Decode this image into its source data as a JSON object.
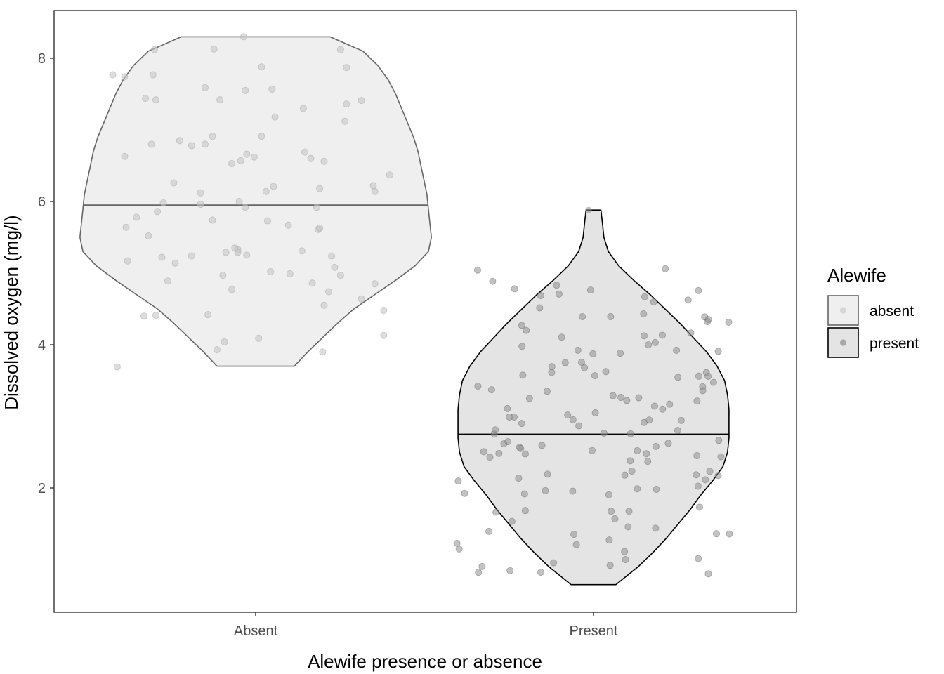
{
  "chart_data": {
    "type": "violin",
    "xlabel": "Alewife presence or absence",
    "ylabel": "Dissolved oxygen (mg/l)",
    "categories": [
      "Absent",
      "Present"
    ],
    "y_ticks": [
      2,
      4,
      6,
      8
    ],
    "ylim": [
      0.5,
      8.7
    ],
    "grid": false,
    "legend": {
      "title": "Alewife",
      "position": "right",
      "entries": [
        {
          "label": "absent",
          "fill": "#efefef",
          "stroke": "#666666",
          "point": "#cfcfcf"
        },
        {
          "label": "present",
          "fill": "#e4e4e4",
          "stroke": "#000000",
          "point": "#999999"
        }
      ]
    },
    "series": [
      {
        "name": "absent",
        "category": "Absent",
        "median": 5.95,
        "min": 3.7,
        "max": 8.3,
        "fill": "#efefef",
        "stroke": "#666666",
        "point_color": "#c7c7c7",
        "density": [
          [
            8.3,
            0.5
          ],
          [
            8.1,
            0.72
          ],
          [
            7.9,
            0.82
          ],
          [
            7.7,
            0.89
          ],
          [
            7.5,
            0.94
          ],
          [
            7.3,
            0.98
          ],
          [
            7.1,
            1.02
          ],
          [
            6.9,
            1.06
          ],
          [
            6.7,
            1.09
          ],
          [
            6.5,
            1.11
          ],
          [
            6.3,
            1.13
          ],
          [
            6.1,
            1.15
          ],
          [
            5.9,
            1.16
          ],
          [
            5.7,
            1.17
          ],
          [
            5.5,
            1.18
          ],
          [
            5.3,
            1.16
          ],
          [
            5.1,
            1.07
          ],
          [
            4.9,
            0.94
          ],
          [
            4.7,
            0.8
          ],
          [
            4.5,
            0.66
          ],
          [
            4.3,
            0.55
          ],
          [
            4.1,
            0.45
          ],
          [
            3.9,
            0.35
          ],
          [
            3.7,
            0.26
          ]
        ],
        "points": [
          [
            -0.68,
            8.12
          ],
          [
            -0.69,
            7.77
          ],
          [
            -0.67,
            7.42
          ],
          [
            -0.74,
            7.44
          ],
          [
            -0.88,
            6.63
          ],
          [
            -0.7,
            6.8
          ],
          [
            -0.55,
            6.26
          ],
          [
            -0.51,
            6.85
          ],
          [
            -0.43,
            6.78
          ],
          [
            -0.37,
            6.12
          ],
          [
            -0.8,
            5.78
          ],
          [
            -0.62,
            5.98
          ],
          [
            -0.72,
            5.52
          ],
          [
            -0.54,
            5.14
          ],
          [
            -0.87,
            5.64
          ],
          [
            -0.66,
            5.86
          ],
          [
            -0.86,
            5.17
          ],
          [
            -0.63,
            5.22
          ],
          [
            -0.43,
            5.24
          ],
          [
            -0.37,
            5.96
          ],
          [
            -0.29,
            5.74
          ],
          [
            -0.07,
            5.92
          ],
          [
            -0.2,
            5.29
          ],
          [
            -0.12,
            5.33
          ],
          [
            -0.22,
            4.97
          ],
          [
            -0.06,
            5.25
          ],
          [
            0.1,
            5.02
          ],
          [
            0.23,
            4.99
          ],
          [
            0.38,
            4.86
          ],
          [
            0.57,
            4.97
          ],
          [
            0.53,
            5.08
          ],
          [
            0.49,
            4.74
          ],
          [
            0.46,
            4.55
          ],
          [
            0.71,
            4.64
          ],
          [
            0.8,
            4.85
          ],
          [
            0.86,
            4.13
          ],
          [
            0.86,
            4.48
          ],
          [
            -0.59,
            4.89
          ],
          [
            -0.67,
            4.41
          ],
          [
            -0.75,
            4.4
          ],
          [
            -0.32,
            4.42
          ],
          [
            -0.16,
            4.77
          ],
          [
            -0.26,
            3.93
          ],
          [
            -0.21,
            4.04
          ],
          [
            0.02,
            4.09
          ],
          [
            0.45,
            3.9
          ],
          [
            -0.93,
            3.69
          ],
          [
            0.46,
            6.56
          ],
          [
            0.43,
            6.18
          ],
          [
            0.42,
            5.61
          ],
          [
            0.51,
            5.24
          ],
          [
            0.43,
            5.63
          ],
          [
            0.37,
            6.6
          ],
          [
            0.33,
            6.69
          ],
          [
            0.32,
            7.3
          ],
          [
            0.61,
            7.36
          ],
          [
            0.71,
            7.41
          ],
          [
            0.6,
            7.12
          ],
          [
            0.57,
            8.12
          ],
          [
            0.61,
            7.87
          ],
          [
            0.79,
            6.22
          ],
          [
            0.8,
            6.14
          ],
          [
            0.9,
            6.37
          ],
          [
            -0.34,
            6.8
          ],
          [
            -0.29,
            6.91
          ],
          [
            -0.34,
            7.59
          ],
          [
            -0.24,
            7.42
          ],
          [
            -0.07,
            7.55
          ],
          [
            0.04,
            7.88
          ],
          [
            0.11,
            7.57
          ],
          [
            0.13,
            7.18
          ],
          [
            0.12,
            6.21
          ],
          [
            0.07,
            6.14
          ],
          [
            -0.01,
            6.62
          ],
          [
            -0.16,
            6.53
          ],
          [
            -0.1,
            6.57
          ],
          [
            -0.06,
            6.66
          ],
          [
            0.04,
            6.91
          ],
          [
            -0.12,
            5.29
          ],
          [
            -0.11,
            6.0
          ],
          [
            -0.14,
            5.35
          ],
          [
            0.08,
            5.73
          ],
          [
            -0.08,
            8.3
          ],
          [
            -0.28,
            8.13
          ],
          [
            -0.96,
            7.77
          ],
          [
            -0.88,
            7.74
          ],
          [
            0.41,
            5.92
          ],
          [
            0.22,
            5.67
          ],
          [
            0.31,
            5.31
          ]
        ]
      },
      {
        "name": "present",
        "category": "Present",
        "median": 2.75,
        "min": 0.65,
        "max": 5.88,
        "fill": "#e4e4e4",
        "stroke": "#000000",
        "point_color": "#8f8f8f",
        "density": [
          [
            5.88,
            0.05
          ],
          [
            5.7,
            0.06
          ],
          [
            5.5,
            0.07
          ],
          [
            5.3,
            0.1
          ],
          [
            5.1,
            0.17
          ],
          [
            4.9,
            0.27
          ],
          [
            4.7,
            0.38
          ],
          [
            4.5,
            0.48
          ],
          [
            4.3,
            0.58
          ],
          [
            4.1,
            0.67
          ],
          [
            3.9,
            0.76
          ],
          [
            3.7,
            0.83
          ],
          [
            3.5,
            0.88
          ],
          [
            3.3,
            0.9
          ],
          [
            3.1,
            0.91
          ],
          [
            2.9,
            0.91
          ],
          [
            2.7,
            0.91
          ],
          [
            2.5,
            0.9
          ],
          [
            2.3,
            0.87
          ],
          [
            2.1,
            0.8
          ],
          [
            1.9,
            0.72
          ],
          [
            1.7,
            0.65
          ],
          [
            1.5,
            0.57
          ],
          [
            1.3,
            0.49
          ],
          [
            1.1,
            0.4
          ],
          [
            0.9,
            0.3
          ],
          [
            0.7,
            0.18
          ],
          [
            0.65,
            0.15
          ]
        ]
      }
    ]
  }
}
